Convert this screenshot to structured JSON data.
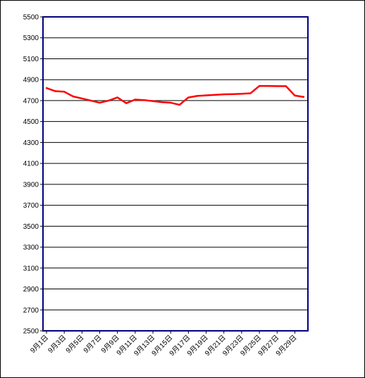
{
  "chart_data": {
    "type": "line",
    "title": "",
    "xlabel": "",
    "ylabel": "",
    "ylim": [
      2500,
      5500
    ],
    "yticks": [
      2500,
      2700,
      2900,
      3100,
      3300,
      3500,
      3700,
      3900,
      4100,
      4300,
      4500,
      4700,
      4900,
      5100,
      5300,
      5500
    ],
    "xtick_labels": [
      "9月1日",
      "9月3日",
      "9月5日",
      "9月7日",
      "9月9日",
      "9月11日",
      "9月13日",
      "9月15日",
      "9月17日",
      "9月19日",
      "9月21日",
      "9月23日",
      "9月25日",
      "9月27日",
      "9月29日"
    ],
    "grid": true,
    "legend": "none",
    "colors": {
      "line": "#ff0000",
      "plot_border": "#000080",
      "grid": "#000000"
    },
    "series": [
      {
        "days": [
          "9月1日",
          "9月2日",
          "9月3日",
          "9月4日",
          "9月5日",
          "9月6日",
          "9月7日",
          "9月8日",
          "9月9日",
          "9月10日",
          "9月11日",
          "9月12日",
          "9月13日",
          "9月14日",
          "9月15日",
          "9月16日",
          "9月17日",
          "9月18日",
          "9月19日",
          "9月20日",
          "9月21日",
          "9月22日",
          "9月23日",
          "9月24日",
          "9月25日",
          "9月26日",
          "9月27日",
          "9月28日",
          "9月29日",
          "9月30日"
        ],
        "values": [
          4820,
          4790,
          4785,
          4740,
          4720,
          4700,
          4680,
          4700,
          4730,
          4675,
          4710,
          4705,
          4695,
          4685,
          4680,
          4660,
          4730,
          4745,
          4750,
          4755,
          4760,
          4762,
          4765,
          4770,
          4840,
          4840,
          4838,
          4838,
          4748,
          4735
        ]
      }
    ]
  }
}
